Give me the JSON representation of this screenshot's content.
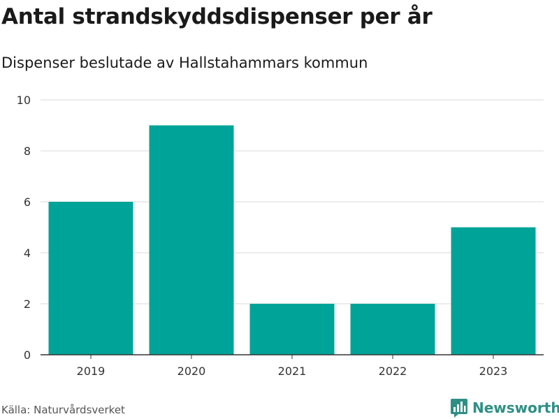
{
  "header": {
    "title": "Antal strandskyddsdispenser per år",
    "subtitle": "Dispenser beslutade av Hallstahammars kommun"
  },
  "footer": {
    "source": "Källa: Naturvårdsverket",
    "brand": "Newsworthy"
  },
  "colors": {
    "bar": "#00a398",
    "grid": "#d9d9d9",
    "axis": "#333333",
    "brand": "#2f8f85"
  },
  "chart_data": {
    "type": "bar",
    "title": "Antal strandskyddsdispenser per år",
    "subtitle": "Dispenser beslutade av Hallstahammars kommun",
    "xlabel": "",
    "ylabel": "",
    "categories": [
      "2019",
      "2020",
      "2021",
      "2022",
      "2023"
    ],
    "values": [
      6,
      9,
      2,
      2,
      5
    ],
    "ylim": [
      0,
      10
    ],
    "yticks": [
      0,
      2,
      4,
      6,
      8,
      10
    ],
    "grid": true,
    "legend": "none"
  }
}
